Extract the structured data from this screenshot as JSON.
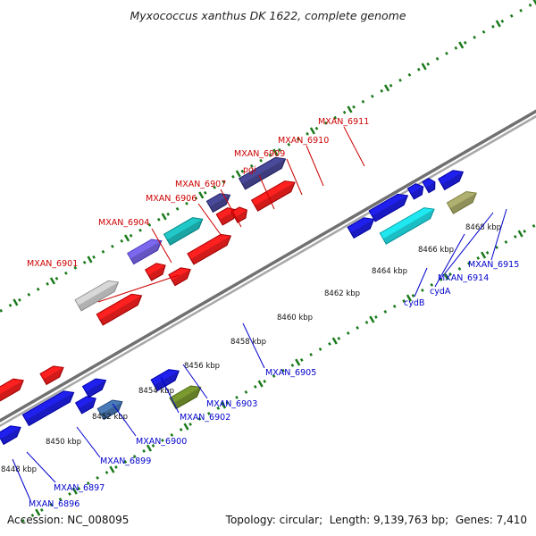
{
  "title": "Myxococcus xanthus DK 1622, complete genome",
  "footer": {
    "accession_label": "Accession:",
    "accession": "NC_008095",
    "topology_label": "Topology:",
    "topology": "circular",
    "length_label": "Length:",
    "length": "9,139,763 bp",
    "genes_label": "Genes:",
    "genes": "7,410"
  },
  "colors": {
    "forward_label": "#cc0000",
    "reverse_label": "#0000cc",
    "tick": "#1a7a1a",
    "backbone": "#808080"
  },
  "scale_unit": "kbp",
  "scale_ticks_kbp": [
    8448,
    8450,
    8452,
    8454,
    8456,
    8458,
    8460,
    8462,
    8464,
    8466,
    8468
  ],
  "forward_gene_labels": [
    "MXAN_6901",
    "MXAN_6904",
    "MXAN_6906",
    "MXAN_6907",
    "pgi",
    "MXAN_6909",
    "MXAN_6910",
    "MXAN_6911"
  ],
  "reverse_gene_labels": [
    "MXAN_6896",
    "MXAN_6897",
    "MXAN_6899",
    "MXAN_6900",
    "MXAN_6902",
    "MXAN_6903",
    "MXAN_6905",
    "cydB",
    "cydA",
    "MXAN_6914",
    "MXAN_6915"
  ]
}
